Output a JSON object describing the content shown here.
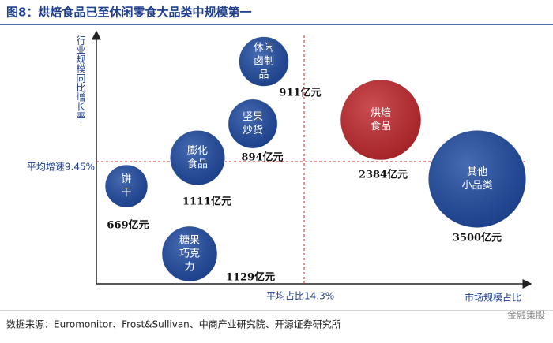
{
  "chart_data": {
    "type": "bubble",
    "title": "图8：烘焙食品已至休闲零食大品类中规模第一",
    "y_label": "行业规模同比增长率",
    "x_label": "市场规模占比",
    "x_ref": {
      "value": 14.3,
      "label": "平均占比14.3%"
    },
    "y_ref": {
      "value": 9.45,
      "label": "平均增速9.45%"
    },
    "bubbles": [
      {
        "name_lines": [
          "休闲",
          "卤制",
          "品"
        ],
        "value": 911,
        "value_label": "911亿元",
        "color": "#1f4aa0"
      },
      {
        "name_lines": [
          "坚果",
          "炒货"
        ],
        "value": 894,
        "value_label": "894亿元",
        "color": "#1f4aa0"
      },
      {
        "name_lines": [
          "膨化",
          "食品"
        ],
        "value": 1111,
        "value_label": "1111亿元",
        "color": "#1f4aa0"
      },
      {
        "name_lines": [
          "饼",
          "干"
        ],
        "value": 669,
        "value_label": "669亿元",
        "color": "#1f4aa0"
      },
      {
        "name_lines": [
          "糖果",
          "巧克",
          "力"
        ],
        "value": 1129,
        "value_label": "1129亿元",
        "color": "#1f4aa0"
      },
      {
        "name_lines": [
          "烘焙",
          "食品"
        ],
        "value": 2384,
        "value_label": "2384亿元",
        "color": "#c0282d"
      },
      {
        "name_lines": [
          "其他",
          "小品类"
        ],
        "value": 3500,
        "value_label": "3500亿元",
        "color": "#1f4aa0"
      }
    ]
  },
  "source": "数据来源：Euromonitor、Frost&Sullivan、中商产业研究院、开源证券研究所",
  "watermark": "金融策股"
}
